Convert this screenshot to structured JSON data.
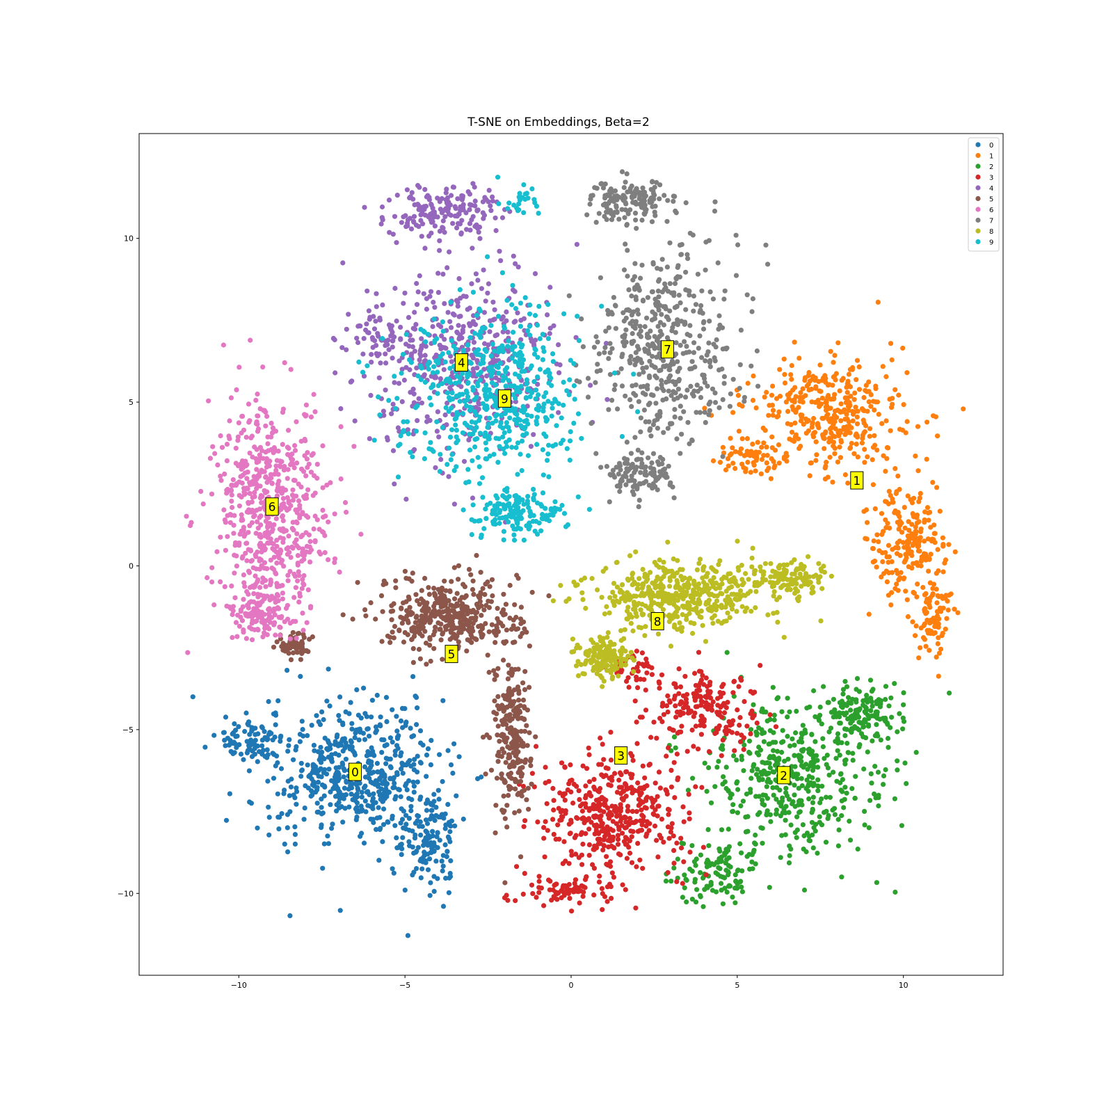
{
  "chart_data": {
    "type": "scatter",
    "title": "T-SNE on Embeddings, Beta=2",
    "xlabel": "",
    "ylabel": "",
    "xlim": [
      -13,
      13
    ],
    "ylim": [
      -12.5,
      13.2
    ],
    "x_ticks": [
      -10,
      -5,
      0,
      5,
      10
    ],
    "y_ticks": [
      -10,
      -5,
      0,
      5,
      10
    ],
    "x_tick_labels": [
      "−10",
      "−5",
      "0",
      "5",
      "10"
    ],
    "y_tick_labels": [
      "−10",
      "−5",
      "0",
      "5",
      "10"
    ],
    "grid": false,
    "legend_position": "top-right",
    "series": [
      {
        "name": "0",
        "color": "#1f77b4",
        "label_pos": [
          -6.5,
          -6.3
        ],
        "n": 750,
        "blobs": [
          [
            -6.5,
            -6.3,
            2.3,
            1.9,
            1
          ],
          [
            -9.6,
            -5.3,
            1.1,
            0.6,
            0.18
          ],
          [
            -4.3,
            -8.5,
            0.8,
            1.4,
            0.25
          ]
        ]
      },
      {
        "name": "1",
        "color": "#ff7f0e",
        "label_pos": [
          8.6,
          2.6
        ],
        "n": 720,
        "blobs": [
          [
            7.8,
            4.6,
            2.2,
            1.6,
            1
          ],
          [
            10.1,
            0.8,
            1.0,
            1.6,
            0.5
          ],
          [
            10.9,
            -1.6,
            0.5,
            1.0,
            0.2
          ],
          [
            5.5,
            3.3,
            0.9,
            0.5,
            0.15
          ]
        ]
      },
      {
        "name": "2",
        "color": "#2ca02c",
        "label_pos": [
          6.4,
          -6.4
        ],
        "n": 700,
        "blobs": [
          [
            6.6,
            -6.4,
            2.4,
            2.1,
            1
          ],
          [
            8.7,
            -4.5,
            1.0,
            0.8,
            0.3
          ],
          [
            4.4,
            -9.4,
            1.1,
            0.9,
            0.25
          ]
        ]
      },
      {
        "name": "3",
        "color": "#d62728",
        "label_pos": [
          1.5,
          -5.8
        ],
        "n": 720,
        "blobs": [
          [
            1.2,
            -7.6,
            2.0,
            1.6,
            1
          ],
          [
            4.0,
            -4.4,
            1.6,
            1.1,
            0.45
          ],
          [
            -0.3,
            -9.9,
            1.5,
            0.4,
            0.2
          ],
          [
            1.8,
            -3.2,
            0.8,
            0.6,
            0.1
          ]
        ]
      },
      {
        "name": "4",
        "color": "#9467bd",
        "label_pos": [
          -3.3,
          6.2
        ],
        "n": 700,
        "blobs": [
          [
            -3.3,
            6.3,
            2.6,
            2.5,
            1
          ],
          [
            -3.8,
            10.8,
            1.5,
            0.8,
            0.4
          ],
          [
            -5.8,
            7.0,
            0.9,
            0.6,
            0.15
          ]
        ]
      },
      {
        "name": "5",
        "color": "#8c564b",
        "label_pos": [
          -3.6,
          -2.7
        ],
        "n": 700,
        "blobs": [
          [
            -3.6,
            -1.5,
            1.9,
            1.0,
            1
          ],
          [
            -1.8,
            -5.2,
            0.5,
            2.3,
            0.55
          ],
          [
            -8.3,
            -2.4,
            0.5,
            0.3,
            0.12
          ]
        ]
      },
      {
        "name": "6",
        "color": "#e377c2",
        "label_pos": [
          -9.0,
          1.8
        ],
        "n": 720,
        "blobs": [
          [
            -9.0,
            1.8,
            1.6,
            2.9,
            1
          ],
          [
            -9.3,
            -1.5,
            0.9,
            0.7,
            0.2
          ]
        ]
      },
      {
        "name": "7",
        "color": "#7f7f7f",
        "label_pos": [
          2.9,
          6.6
        ],
        "n": 720,
        "blobs": [
          [
            2.9,
            6.8,
            1.9,
            2.8,
            1
          ],
          [
            1.8,
            11.1,
            1.2,
            0.6,
            0.3
          ],
          [
            2.1,
            2.8,
            0.9,
            0.6,
            0.2
          ]
        ]
      },
      {
        "name": "8",
        "color": "#bcbd22",
        "label_pos": [
          2.6,
          -1.7
        ],
        "n": 720,
        "blobs": [
          [
            3.2,
            -0.8,
            2.4,
            1.0,
            1
          ],
          [
            1.0,
            -2.8,
            0.8,
            0.6,
            0.3
          ],
          [
            6.5,
            -0.4,
            1.0,
            0.5,
            0.3
          ]
        ]
      },
      {
        "name": "9",
        "color": "#17becf",
        "label_pos": [
          -2.0,
          5.1
        ],
        "n": 700,
        "blobs": [
          [
            -2.5,
            5.3,
            2.5,
            2.4,
            1
          ],
          [
            -1.6,
            1.6,
            1.2,
            0.6,
            0.3
          ],
          [
            -1.5,
            11.2,
            0.5,
            0.5,
            0.06
          ]
        ]
      }
    ]
  }
}
